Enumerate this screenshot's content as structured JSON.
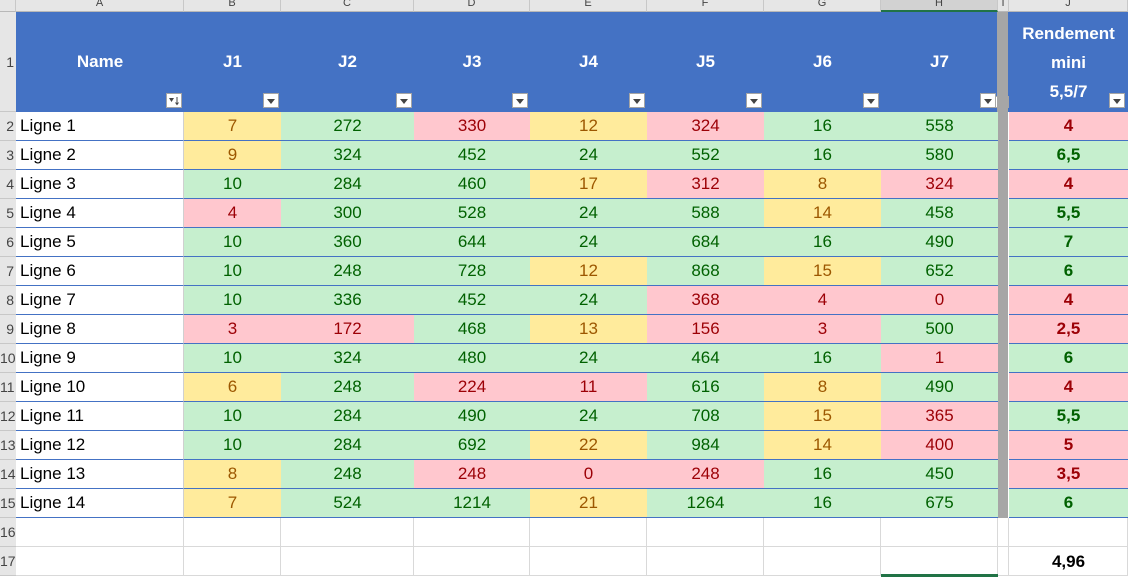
{
  "column_letters": [
    "A",
    "B",
    "C",
    "D",
    "E",
    "F",
    "G",
    "H",
    "I",
    "J"
  ],
  "row_numbers": [
    "1",
    "2",
    "3",
    "4",
    "5",
    "6",
    "7",
    "8",
    "9",
    "10",
    "11",
    "12",
    "13",
    "14",
    "15",
    "16",
    "17"
  ],
  "headers": {
    "name": "Name",
    "days": [
      "J1",
      "J2",
      "J3",
      "J4",
      "J5",
      "J6",
      "J7"
    ],
    "rendement_lines": [
      "Rendement",
      "mini",
      "5,5/7"
    ]
  },
  "rows": [
    {
      "name": "Ligne 1",
      "values": [
        "7",
        "272",
        "330",
        "12",
        "324",
        "16",
        "558"
      ],
      "status": [
        "y",
        "g",
        "r",
        "y",
        "r",
        "g",
        "g"
      ],
      "rendement": "4",
      "rstatus": "r"
    },
    {
      "name": "Ligne 2",
      "values": [
        "9",
        "324",
        "452",
        "24",
        "552",
        "16",
        "580"
      ],
      "status": [
        "y",
        "g",
        "g",
        "g",
        "g",
        "g",
        "g"
      ],
      "rendement": "6,5",
      "rstatus": "g"
    },
    {
      "name": "Ligne 3",
      "values": [
        "10",
        "284",
        "460",
        "17",
        "312",
        "8",
        "324"
      ],
      "status": [
        "g",
        "g",
        "g",
        "y",
        "r",
        "y",
        "r"
      ],
      "rendement": "4",
      "rstatus": "r"
    },
    {
      "name": "Ligne 4",
      "values": [
        "4",
        "300",
        "528",
        "24",
        "588",
        "14",
        "458"
      ],
      "status": [
        "r",
        "g",
        "g",
        "g",
        "g",
        "y",
        "g"
      ],
      "rendement": "5,5",
      "rstatus": "g"
    },
    {
      "name": "Ligne 5",
      "values": [
        "10",
        "360",
        "644",
        "24",
        "684",
        "16",
        "490"
      ],
      "status": [
        "g",
        "g",
        "g",
        "g",
        "g",
        "g",
        "g"
      ],
      "rendement": "7",
      "rstatus": "g"
    },
    {
      "name": "Ligne 6",
      "values": [
        "10",
        "248",
        "728",
        "12",
        "868",
        "15",
        "652"
      ],
      "status": [
        "g",
        "g",
        "g",
        "y",
        "g",
        "y",
        "g"
      ],
      "rendement": "6",
      "rstatus": "g"
    },
    {
      "name": "Ligne 7",
      "values": [
        "10",
        "336",
        "452",
        "24",
        "368",
        "4",
        "0"
      ],
      "status": [
        "g",
        "g",
        "g",
        "g",
        "r",
        "r",
        "r"
      ],
      "rendement": "4",
      "rstatus": "r"
    },
    {
      "name": "Ligne 8",
      "values": [
        "3",
        "172",
        "468",
        "13",
        "156",
        "3",
        "500"
      ],
      "status": [
        "r",
        "r",
        "g",
        "y",
        "r",
        "r",
        "g"
      ],
      "rendement": "2,5",
      "rstatus": "r"
    },
    {
      "name": "Ligne 9",
      "values": [
        "10",
        "324",
        "480",
        "24",
        "464",
        "16",
        "1"
      ],
      "status": [
        "g",
        "g",
        "g",
        "g",
        "g",
        "g",
        "r"
      ],
      "rendement": "6",
      "rstatus": "g"
    },
    {
      "name": "Ligne 10",
      "values": [
        "6",
        "248",
        "224",
        "11",
        "616",
        "8",
        "490"
      ],
      "status": [
        "y",
        "g",
        "r",
        "r",
        "g",
        "y",
        "g"
      ],
      "rendement": "4",
      "rstatus": "r"
    },
    {
      "name": "Ligne 11",
      "values": [
        "10",
        "284",
        "490",
        "24",
        "708",
        "15",
        "365"
      ],
      "status": [
        "g",
        "g",
        "g",
        "g",
        "g",
        "y",
        "r"
      ],
      "rendement": "5,5",
      "rstatus": "g"
    },
    {
      "name": "Ligne 12",
      "values": [
        "10",
        "284",
        "692",
        "22",
        "984",
        "14",
        "400"
      ],
      "status": [
        "g",
        "g",
        "g",
        "y",
        "g",
        "y",
        "r"
      ],
      "rendement": "5",
      "rstatus": "r"
    },
    {
      "name": "Ligne 13",
      "values": [
        "8",
        "248",
        "248",
        "0",
        "248",
        "16",
        "450"
      ],
      "status": [
        "y",
        "g",
        "r",
        "r",
        "r",
        "g",
        "g"
      ],
      "rendement": "3,5",
      "rstatus": "r"
    },
    {
      "name": "Ligne 14",
      "values": [
        "7",
        "524",
        "1214",
        "21",
        "1264",
        "16",
        "675"
      ],
      "status": [
        "y",
        "g",
        "g",
        "y",
        "g",
        "g",
        "g"
      ],
      "rendement": "6",
      "rstatus": "g"
    }
  ],
  "total": "4,96",
  "colors": {
    "header_blue": "#4472c4",
    "green_fill": "#c6efce",
    "yellow_fill": "#ffeb9c",
    "red_fill": "#ffc7ce"
  }
}
